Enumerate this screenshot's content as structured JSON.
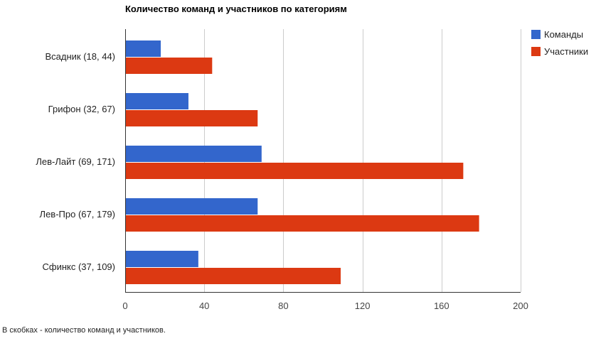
{
  "colors": {
    "teams": "#3366cc",
    "participants": "#dc3912",
    "gridline": "#cccccc",
    "axis": "#333333"
  },
  "footnote": "В скобках - количество команд и участников.",
  "chart_data": {
    "type": "bar",
    "orientation": "horizontal",
    "title": "Количество команд и участников по категориям",
    "categories": [
      "Всадник (18, 44)",
      "Грифон (32, 67)",
      "Лев-Лайт (69, 171)",
      "Лев-Про (67, 179)",
      "Сфинкс (37, 109)"
    ],
    "series": [
      {
        "name": "Команды",
        "color": "#3366cc",
        "values": [
          18,
          32,
          69,
          67,
          37
        ]
      },
      {
        "name": "Участники",
        "color": "#dc3912",
        "values": [
          44,
          67,
          171,
          179,
          109
        ]
      }
    ],
    "xlim": [
      0,
      200
    ],
    "xticks": [
      0,
      40,
      80,
      120,
      160,
      200
    ],
    "grid": true,
    "legend": "top-right"
  }
}
